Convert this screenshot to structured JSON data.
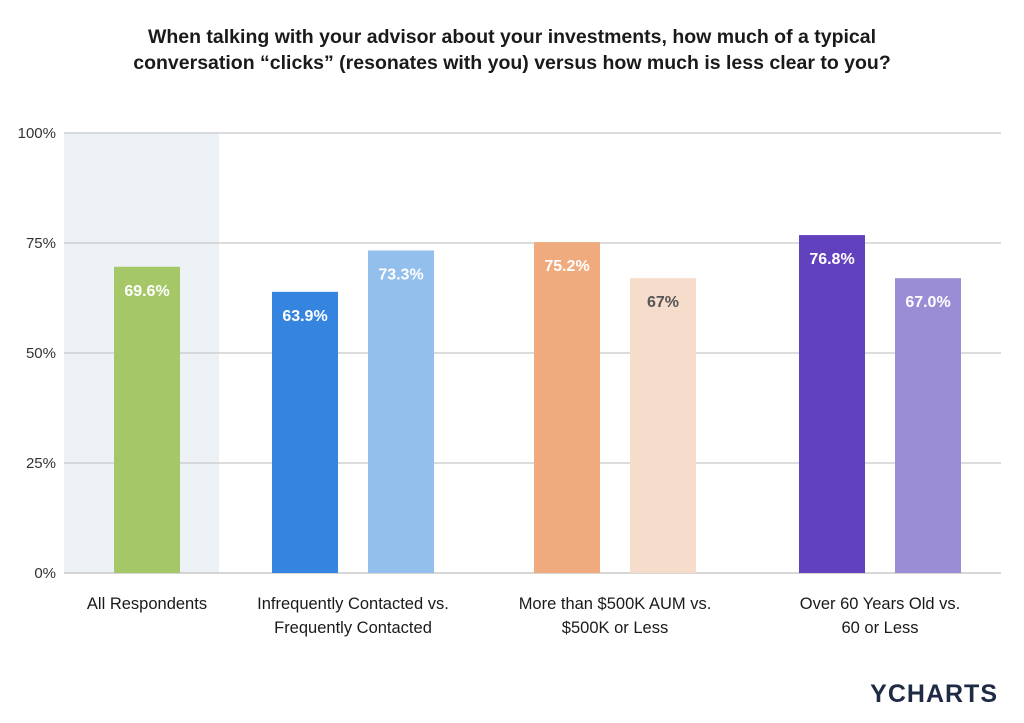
{
  "title_lines": [
    "When talking with your advisor about your investments, how much of a typical",
    "conversation “clicks” (resonates with you) versus how much is less clear to you?"
  ],
  "brand": {
    "text": "YCHARTS"
  },
  "chart_data": {
    "type": "bar",
    "title": "When talking with your advisor about your investments, how much of a typical conversation “clicks” (resonates with you) versus how much is less clear to you?",
    "xlabel": "",
    "ylabel": "",
    "ylim": [
      0,
      100
    ],
    "yticks": [
      {
        "value": 0,
        "label": "0%"
      },
      {
        "value": 25,
        "label": "25%"
      },
      {
        "value": 50,
        "label": "50%"
      },
      {
        "value": 75,
        "label": "75%"
      },
      {
        "value": 100,
        "label": "100%"
      }
    ],
    "grid": true,
    "legend": "none",
    "groups": [
      {
        "label_lines": [
          "All Respondents"
        ],
        "highlighted": true,
        "bars": [
          {
            "value": 69.6,
            "label": "69.6%",
            "color": "#a5c767",
            "label_color": "#ffffff"
          }
        ]
      },
      {
        "label_lines": [
          "Infrequently Contacted vs.",
          "Frequently Contacted"
        ],
        "highlighted": false,
        "bars": [
          {
            "value": 63.9,
            "label": "63.9%",
            "color": "#3584df",
            "label_color": "#ffffff"
          },
          {
            "value": 73.3,
            "label": "73.3%",
            "color": "#92bfec",
            "label_color": "#ffffff"
          }
        ]
      },
      {
        "label_lines": [
          "More than $500K AUM vs.",
          "$500K or Less"
        ],
        "highlighted": false,
        "bars": [
          {
            "value": 75.2,
            "label": "75.2%",
            "color": "#efaa7d",
            "label_color": "#ffffff"
          },
          {
            "value": 67,
            "label": "67%",
            "color": "#f6dccb",
            "label_color": "#555555"
          }
        ]
      },
      {
        "label_lines": [
          "Over 60 Years Old vs.",
          "60 or Less"
        ],
        "highlighted": false,
        "bars": [
          {
            "value": 76.8,
            "label": "76.8%",
            "color": "#6241be",
            "label_color": "#ffffff"
          },
          {
            "value": 67.0,
            "label": "67.0%",
            "color": "#9b8cd6",
            "label_color": "#ffffff"
          }
        ]
      }
    ],
    "colors": {
      "grid": "#c8c8c8",
      "highlight_band": "#edf2f7",
      "tick_text": "#333333"
    }
  }
}
